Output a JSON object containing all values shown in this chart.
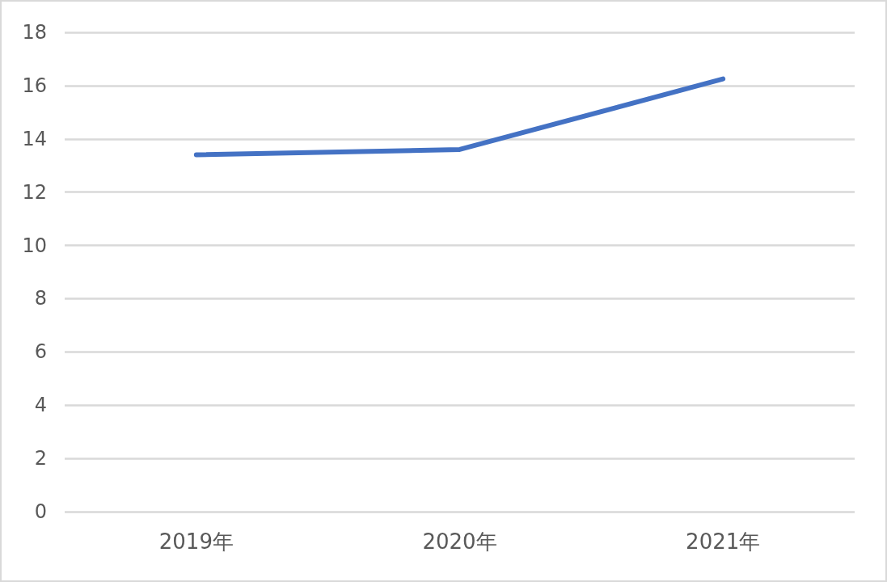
{
  "chart_data": {
    "type": "line",
    "categories": [
      "2019年",
      "2020年",
      "2021年"
    ],
    "series": [
      {
        "color": "#4472c4",
        "values": [
          13.4,
          13.6,
          16.25
        ]
      }
    ],
    "ylim": [
      0,
      18
    ],
    "yticks": [
      0,
      2,
      4,
      6,
      8,
      10,
      12,
      14,
      16,
      18
    ],
    "grid": "y",
    "marker": "none",
    "line_style": "solid"
  }
}
